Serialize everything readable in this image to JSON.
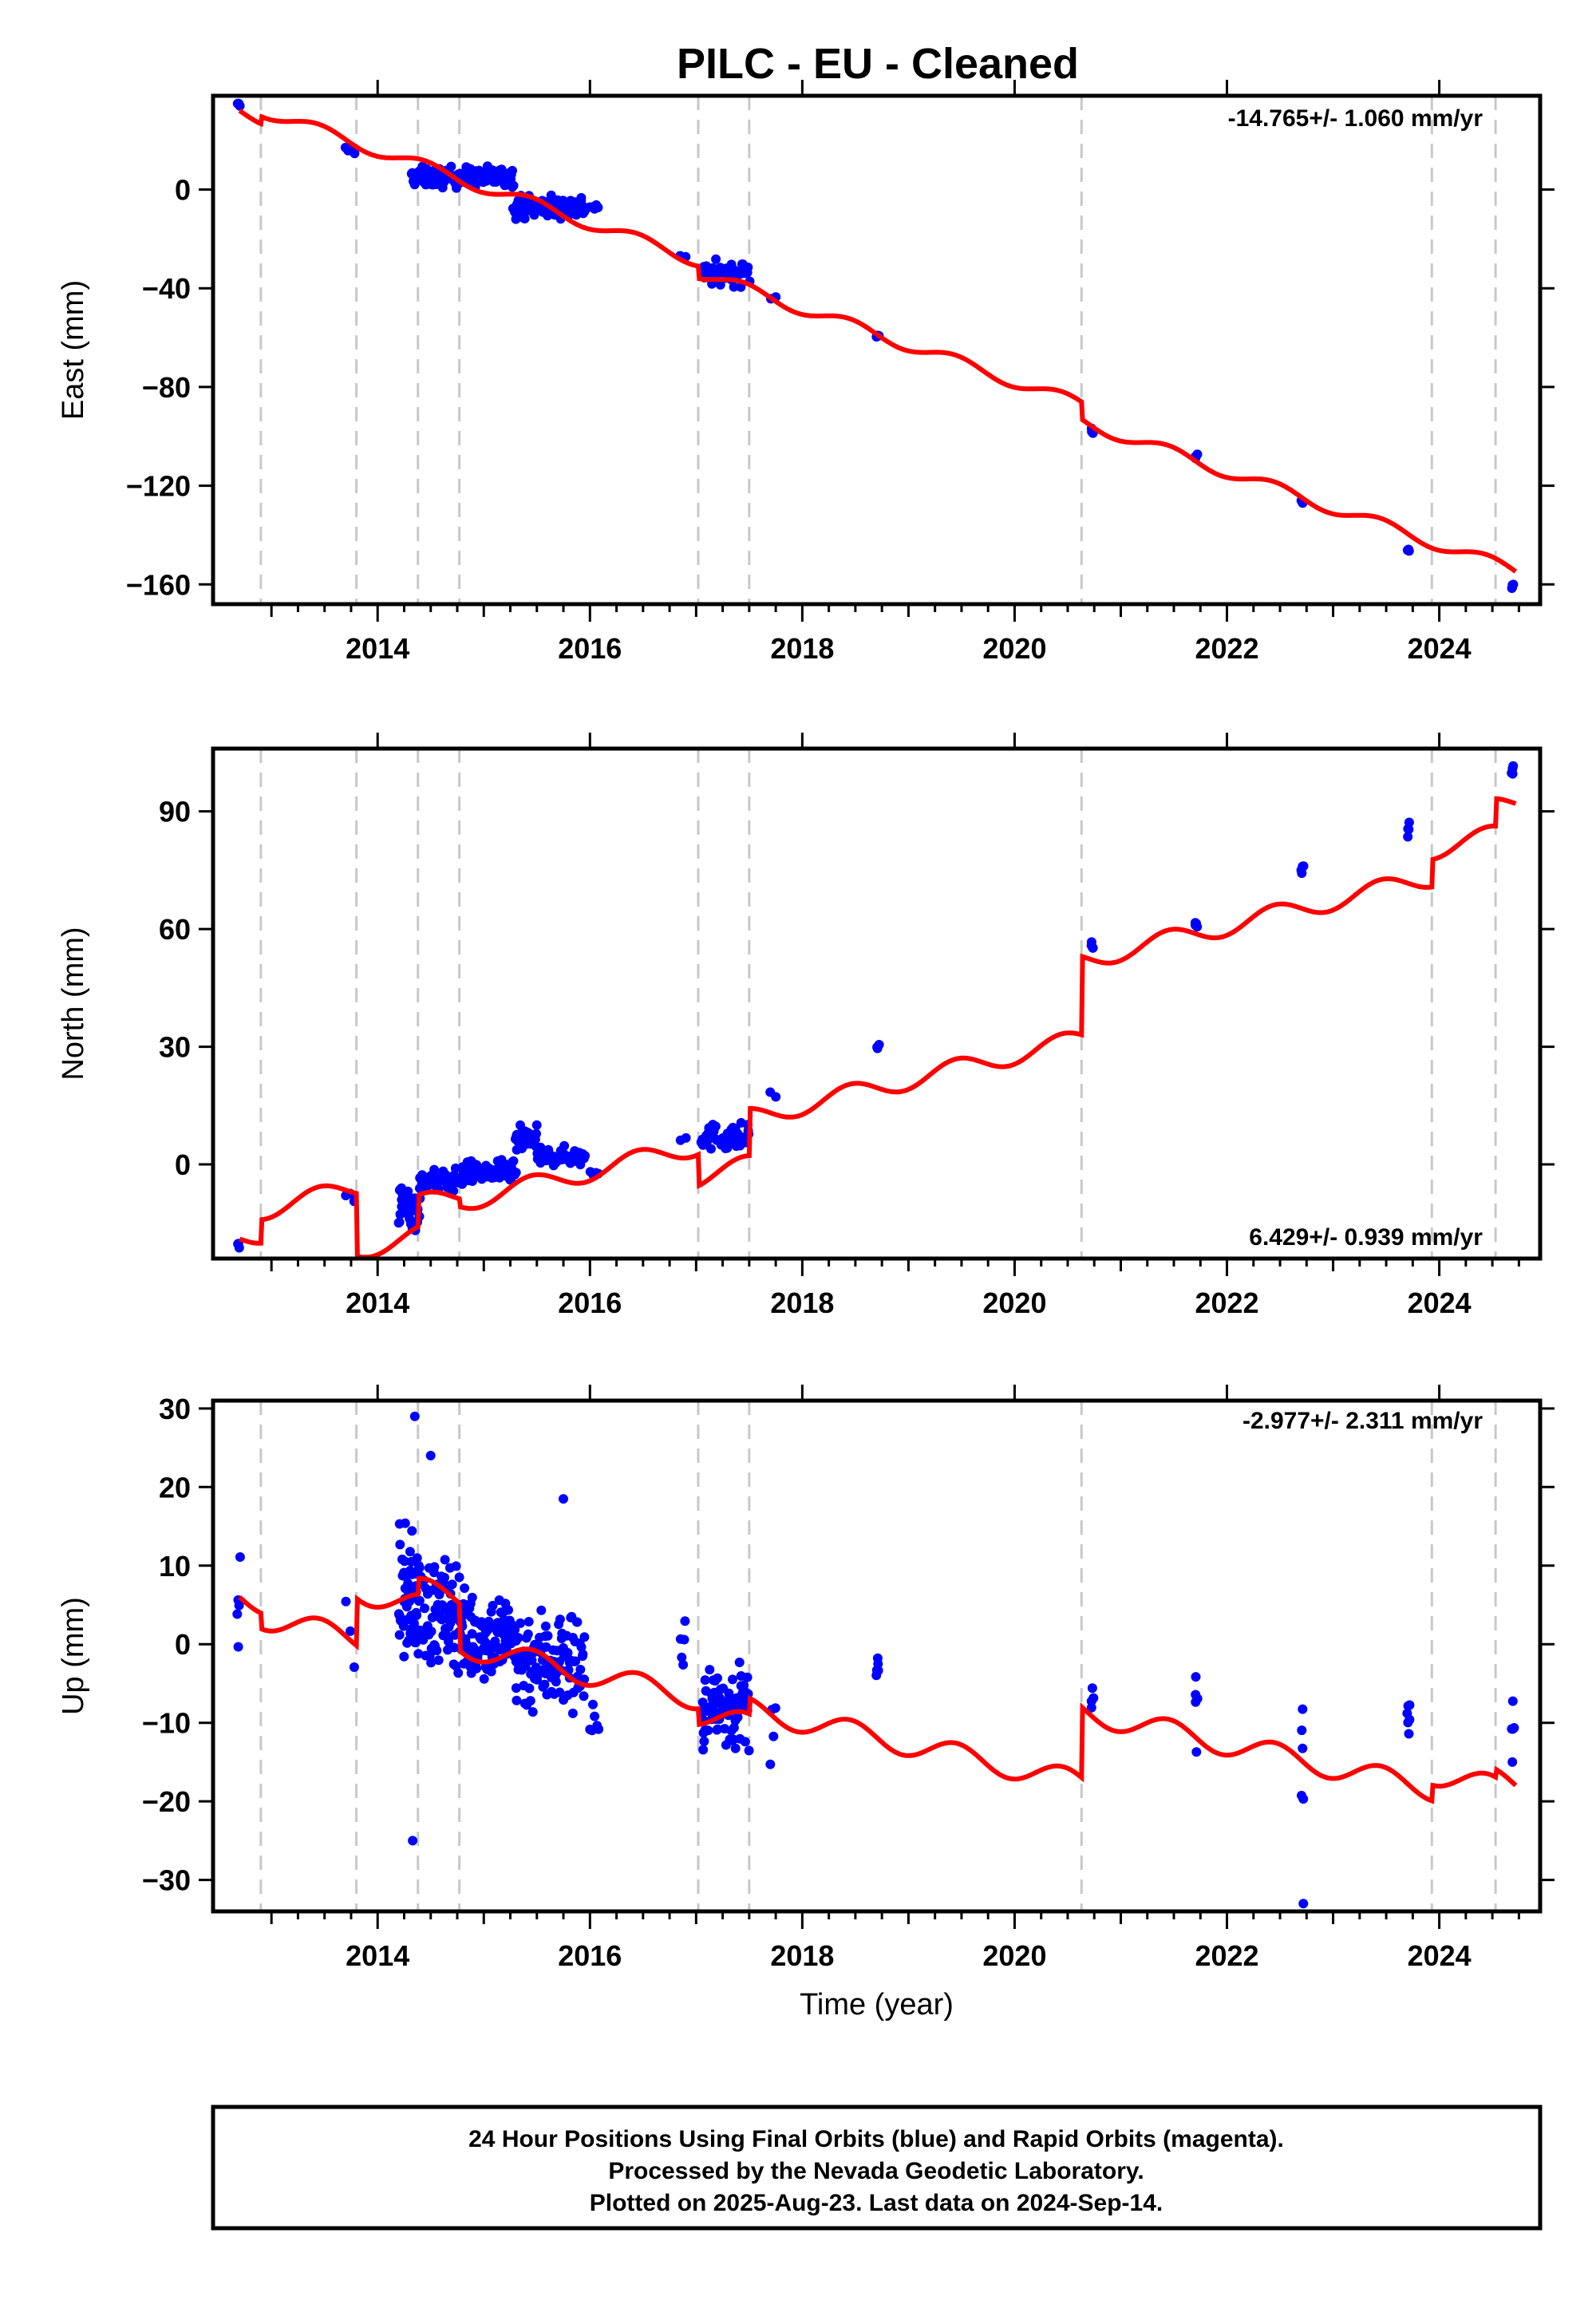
{
  "title": "PILC  - EU - Cleaned",
  "footer": {
    "lines": [
      "24 Hour Positions Using Final Orbits (blue) and Rapid Orbits (magenta).",
      "Processed by the Nevada Geodetic Laboratory.",
      "Plotted on 2025-Aug-23. Last data on 2024-Sep-14."
    ]
  },
  "colors": {
    "points": "#0000ff",
    "model": "#ff0000",
    "events": "#c8c8c8",
    "frame": "#000000"
  },
  "chart_data": [
    {
      "type": "scatter",
      "component": "east",
      "ylabel": "East (mm)",
      "xlabel": "",
      "rate_label": "-14.765+/- 1.060 mm/yr",
      "rate_position": "top-right",
      "xlim": [
        2012.45,
        2024.95
      ],
      "ylim": [
        -168,
        38
      ],
      "xticks": [
        2014,
        2016,
        2018,
        2020,
        2022,
        2024
      ],
      "yticks": [
        0,
        -40,
        -80,
        -120,
        -160
      ],
      "event_lines": [
        2012.9,
        2013.8,
        2014.38,
        2014.77,
        2017.02,
        2017.5,
        2020.63,
        2023.93,
        2024.53
      ],
      "model_rate": -14.765,
      "model_anchor": [
        2012.7,
        32
      ],
      "model_offsets": [
        [
          2012.9,
          3
        ],
        [
          2017.02,
          -5
        ],
        [
          2020.63,
          -7
        ]
      ],
      "seasonal_amp": 2.5,
      "segments": [
        [
          2012.68,
          2012.7,
          34,
          1.5,
          3
        ],
        [
          2013.7,
          2013.78,
          16,
          1.5,
          4
        ],
        [
          2014.32,
          2015.28,
          5,
          3.5,
          150
        ],
        [
          2015.28,
          2015.95,
          -7,
          4,
          110
        ],
        [
          2016.0,
          2016.08,
          -7,
          1.5,
          5
        ],
        [
          2016.85,
          2016.9,
          -27,
          1,
          2
        ],
        [
          2017.05,
          2017.5,
          -34,
          4,
          50
        ],
        [
          2017.7,
          2017.75,
          -44,
          1,
          2
        ],
        [
          2018.7,
          2018.72,
          -59,
          1,
          3
        ],
        [
          2020.72,
          2020.74,
          -97,
          2,
          4
        ],
        [
          2021.7,
          2021.72,
          -108,
          1.5,
          4
        ],
        [
          2022.7,
          2022.72,
          -127,
          1.5,
          4
        ],
        [
          2023.7,
          2023.72,
          -146,
          1,
          4
        ],
        [
          2024.68,
          2024.7,
          -161,
          1.5,
          4
        ]
      ]
    },
    {
      "type": "scatter",
      "component": "north",
      "ylabel": "North (mm)",
      "xlabel": "",
      "rate_label": "6.429+/- 0.939 mm/yr",
      "rate_position": "bottom-right",
      "xlim": [
        2012.45,
        2024.95
      ],
      "ylim": [
        -24,
        106
      ],
      "xticks": [
        2014,
        2016,
        2018,
        2020,
        2022,
        2024
      ],
      "yticks": [
        0,
        30,
        60,
        90
      ],
      "event_lines": [
        2012.9,
        2013.8,
        2014.38,
        2014.77,
        2017.02,
        2017.5,
        2020.63,
        2023.93,
        2024.53
      ],
      "model_rate": 6.429,
      "model_anchor": [
        2012.7,
        -19
      ],
      "model_offsets": [
        [
          2012.9,
          6
        ],
        [
          2013.8,
          -16
        ],
        [
          2014.38,
          8
        ],
        [
          2014.77,
          -2
        ],
        [
          2017.02,
          -8
        ],
        [
          2017.5,
          12
        ],
        [
          2020.63,
          20
        ],
        [
          2023.93,
          7
        ],
        [
          2024.53,
          7
        ]
      ],
      "seasonal_amp": 2.5,
      "segments": [
        [
          2012.68,
          2012.7,
          -20,
          1.5,
          3
        ],
        [
          2013.7,
          2013.78,
          -8,
          1.5,
          3
        ],
        [
          2014.2,
          2014.4,
          -11,
          5,
          40
        ],
        [
          2014.4,
          2014.8,
          -4,
          2.5,
          50
        ],
        [
          2014.8,
          2015.3,
          -2,
          2.5,
          60
        ],
        [
          2015.3,
          2015.5,
          6,
          3,
          40
        ],
        [
          2015.5,
          2015.95,
          2,
          2,
          60
        ],
        [
          2016.0,
          2016.08,
          -2,
          1,
          4
        ],
        [
          2016.85,
          2016.9,
          7,
          1,
          2
        ],
        [
          2017.05,
          2017.5,
          7,
          3,
          50
        ],
        [
          2017.7,
          2017.75,
          18,
          1,
          2
        ],
        [
          2018.7,
          2018.72,
          30,
          1,
          3
        ],
        [
          2020.72,
          2020.74,
          56,
          2,
          4
        ],
        [
          2021.7,
          2021.72,
          61,
          1.5,
          4
        ],
        [
          2022.7,
          2022.72,
          75,
          1.5,
          4
        ],
        [
          2023.7,
          2023.72,
          85,
          2,
          4
        ],
        [
          2024.68,
          2024.7,
          100,
          2,
          4
        ]
      ]
    },
    {
      "type": "scatter",
      "component": "up",
      "ylabel": "Up (mm)",
      "xlabel": "Time (year)",
      "rate_label": "-2.977+/- 2.311 mm/yr",
      "rate_position": "top-right",
      "xlim": [
        2012.45,
        2024.95
      ],
      "ylim": [
        -34,
        31
      ],
      "xticks": [
        2014,
        2016,
        2018,
        2020,
        2022,
        2024
      ],
      "yticks": [
        30,
        20,
        10,
        0,
        -10,
        -20,
        -30
      ],
      "event_lines": [
        2012.9,
        2013.8,
        2014.38,
        2014.77,
        2017.02,
        2017.5,
        2020.63,
        2023.93,
        2024.53
      ],
      "model_rate": -2.977,
      "model_anchor": [
        2012.7,
        6
      ],
      "model_offsets": [
        [
          2012.9,
          -2
        ],
        [
          2013.8,
          6
        ],
        [
          2014.38,
          2
        ],
        [
          2014.77,
          -6
        ],
        [
          2017.02,
          -2
        ],
        [
          2017.5,
          2
        ],
        [
          2020.63,
          9
        ],
        [
          2023.93,
          2
        ],
        [
          2024.53,
          1
        ]
      ],
      "seasonal_amp": 1.5,
      "segments": [
        [
          2012.68,
          2012.7,
          6,
          5,
          5
        ],
        [
          2013.7,
          2013.78,
          1,
          4,
          3
        ],
        [
          2014.2,
          2014.4,
          6,
          7,
          60
        ],
        [
          2014.4,
          2014.8,
          4,
          6,
          80
        ],
        [
          2014.8,
          2015.3,
          1,
          5,
          100
        ],
        [
          2015.3,
          2015.95,
          -2,
          6,
          110
        ],
        [
          2016.0,
          2016.08,
          -10,
          4,
          6
        ],
        [
          2016.85,
          2016.9,
          -2,
          4,
          5
        ],
        [
          2017.05,
          2017.5,
          -8,
          5,
          80
        ],
        [
          2017.7,
          2017.75,
          -10,
          5,
          4
        ],
        [
          2018.7,
          2018.72,
          -5,
          5,
          5
        ],
        [
          2020.72,
          2020.74,
          -8,
          3,
          4
        ],
        [
          2021.7,
          2021.72,
          -8,
          4,
          5
        ],
        [
          2022.7,
          2022.72,
          -15,
          6,
          5
        ],
        [
          2023.7,
          2023.72,
          -10,
          4,
          6
        ],
        [
          2024.68,
          2024.7,
          -12,
          3,
          5
        ]
      ],
      "extra_points": [
        [
          2014.35,
          29
        ],
        [
          2014.33,
          -25
        ],
        [
          2022.72,
          -33
        ],
        [
          2015.75,
          18.5
        ],
        [
          2014.5,
          24
        ]
      ]
    }
  ]
}
